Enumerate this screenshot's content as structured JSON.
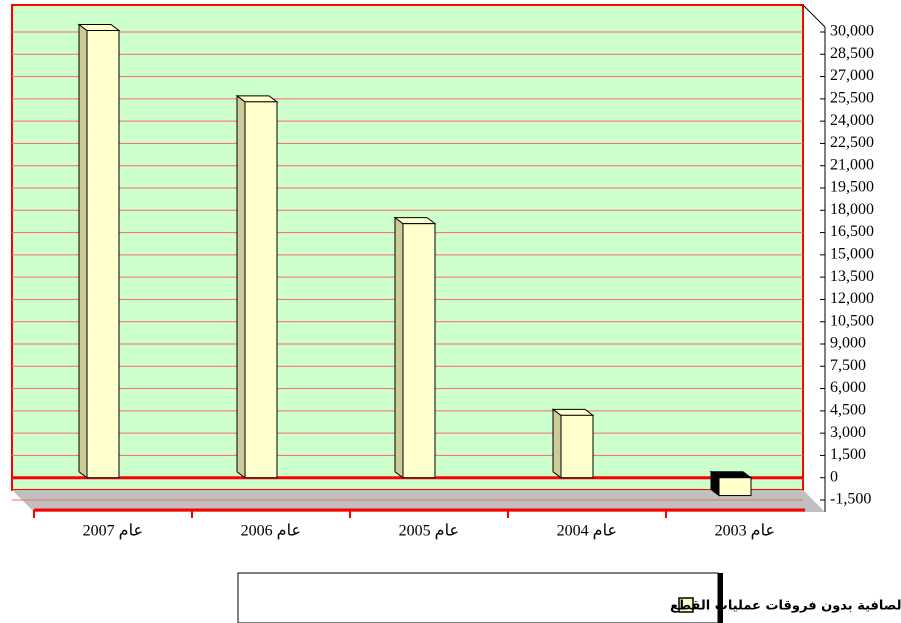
{
  "chart_data": {
    "type": "bar3d",
    "categories": [
      "عام 2007",
      "عام 2006",
      "عام 2005",
      "عام 2004",
      "عام 2003"
    ],
    "series": [
      {
        "name": "الأرباح غير الصافية بدون فروقات عمليات القطع",
        "color": "#ffffcc",
        "values": [
          30100,
          25300,
          17100,
          4200,
          -1200
        ]
      }
    ],
    "ylim": [
      -1500,
      30000
    ],
    "yticks": [
      {
        "value": -1500,
        "label": "-1,500"
      },
      0,
      {
        "value": 1500,
        "label": "1,500"
      },
      {
        "value": 3000,
        "label": "3,000"
      },
      {
        "value": 4500,
        "label": "4,500"
      },
      {
        "value": 6000,
        "label": "6,000"
      },
      {
        "value": 7500,
        "label": "7,500"
      },
      {
        "value": 9000,
        "label": "9,000"
      },
      {
        "value": 10500,
        "label": "10,500"
      },
      {
        "value": 12000,
        "label": "12,000"
      },
      {
        "value": 13500,
        "label": "13,500"
      },
      {
        "value": 15000,
        "label": "15,000"
      },
      {
        "value": 16500,
        "label": "16,500"
      },
      {
        "value": 18000,
        "label": "18,000"
      },
      {
        "value": 19500,
        "label": "19,500"
      },
      {
        "value": 21000,
        "label": "21,000"
      },
      {
        "value": 22500,
        "label": "22,500"
      },
      {
        "value": 24000,
        "label": "24,000"
      },
      {
        "value": 25500,
        "label": "25,500"
      },
      {
        "value": 27000,
        "label": "27,000"
      },
      {
        "value": 28500,
        "label": "28,500"
      },
      {
        "value": 30000,
        "label": "30,000"
      }
    ],
    "grid": true
  }
}
